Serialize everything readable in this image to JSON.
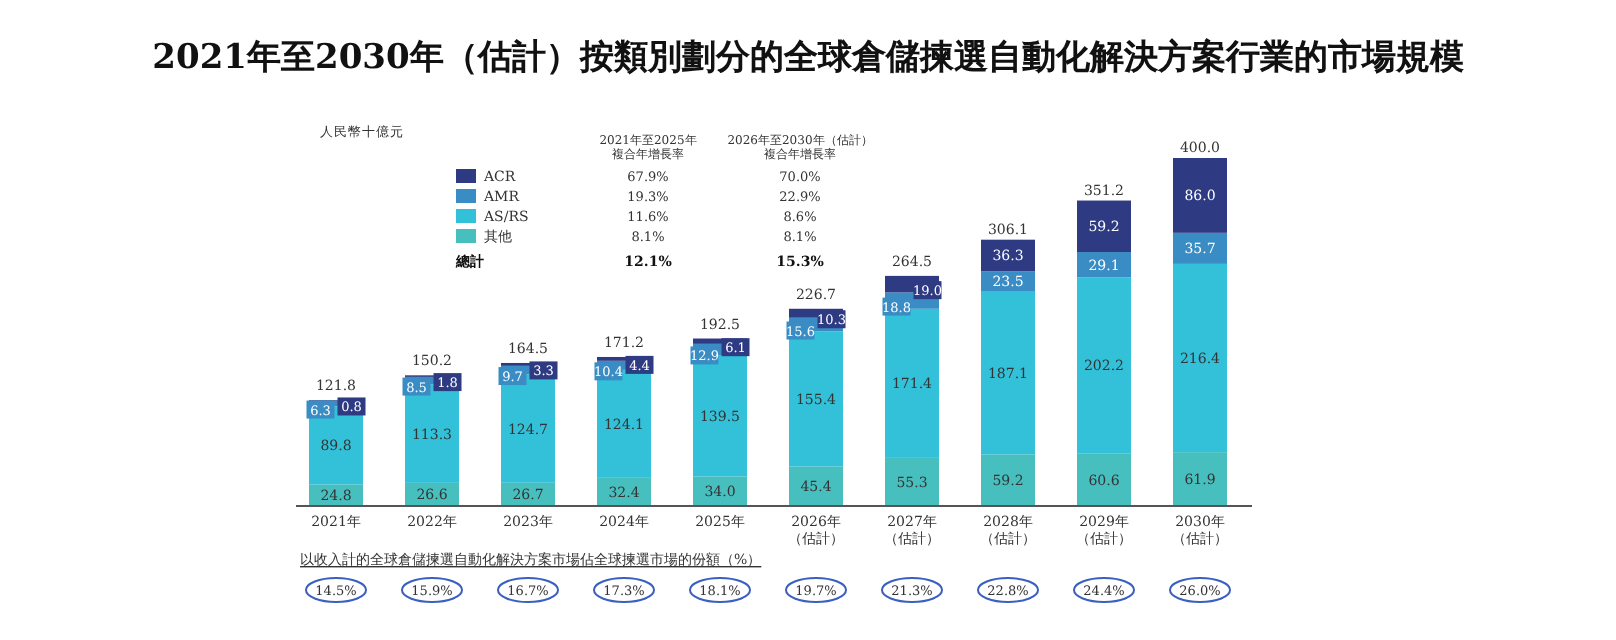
{
  "chart_data": {
    "type": "bar",
    "stacked": true,
    "title": "2021年至2030年（估計）按類別劃分的全球倉儲揀選自動化解決方案行業的市場規模",
    "categories": [
      "2021年",
      "2022年",
      "2023年",
      "2024年",
      "2025年",
      "2026年（估計）",
      "2027年（估計）",
      "2028年（估計）",
      "2029年（估計）",
      "2030年（估計）"
    ],
    "series": [
      {
        "name": "其他",
        "color": "#47bfbf",
        "values": [
          24.8,
          26.6,
          26.7,
          32.4,
          34.0,
          45.4,
          55.3,
          59.2,
          60.6,
          61.9
        ],
        "value_labels": [
          "24.8",
          "26.6",
          "26.7",
          "32.4",
          "34.0",
          "45.4",
          "55.3",
          "59.2",
          "60.6",
          "61.9"
        ]
      },
      {
        "name": "AS/RS",
        "color": "#33c1d9",
        "values": [
          89.8,
          113.3,
          124.7,
          124.1,
          139.5,
          155.4,
          171.4,
          187.1,
          202.2,
          216.4
        ],
        "value_labels": [
          "89.8",
          "113.3",
          "124.7",
          "124.1",
          "139.5",
          "155.4",
          "171.4",
          "187.1",
          "202.2",
          "216.4"
        ]
      },
      {
        "name": "AMR",
        "color": "#3a8cc4",
        "values": [
          6.3,
          8.5,
          9.7,
          10.4,
          12.9,
          15.6,
          18.8,
          23.5,
          29.1,
          35.7
        ],
        "value_labels": [
          "6.3",
          "8.5",
          "9.7",
          "10.4",
          "12.9",
          "15.6",
          "18.8",
          "23.5",
          "29.1",
          "35.7"
        ]
      },
      {
        "name": "ACR",
        "color": "#2e3a82",
        "values": [
          0.8,
          1.8,
          3.3,
          4.4,
          6.1,
          10.3,
          19.0,
          36.3,
          59.2,
          86.0
        ],
        "value_labels": [
          "0.8",
          "1.8",
          "3.3",
          "4.4",
          "6.1",
          "10.3",
          "19.0",
          "36.3",
          "59.2",
          "86.0"
        ]
      }
    ],
    "totals": [
      "121.8",
      "150.2",
      "164.5",
      "171.2",
      "192.5",
      "226.7",
      "264.5",
      "306.1",
      "351.2",
      "400.0"
    ],
    "legend": "top left",
    "annotations": [
      "人民幣十億元",
      "2021年至2025年",
      "複合年增長率",
      "2026年至2030年（估計）",
      "複合年增長率",
      "67.9%",
      "70.0%",
      "19.3%",
      "22.9%",
      "11.6%",
      "8.6%",
      "8.1%",
      "8.1%",
      "總計",
      "12.1%",
      "15.3%",
      "以收入計的全球倉儲揀選自動化解決方案市場佔全球揀選市場的份額（%）",
      "14.5%",
      "15.9%",
      "16.7%",
      "17.3%",
      "18.1%",
      "19.7%",
      "21.3%",
      "22.8%",
      "24.4%",
      "26.0%"
    ]
  }
}
